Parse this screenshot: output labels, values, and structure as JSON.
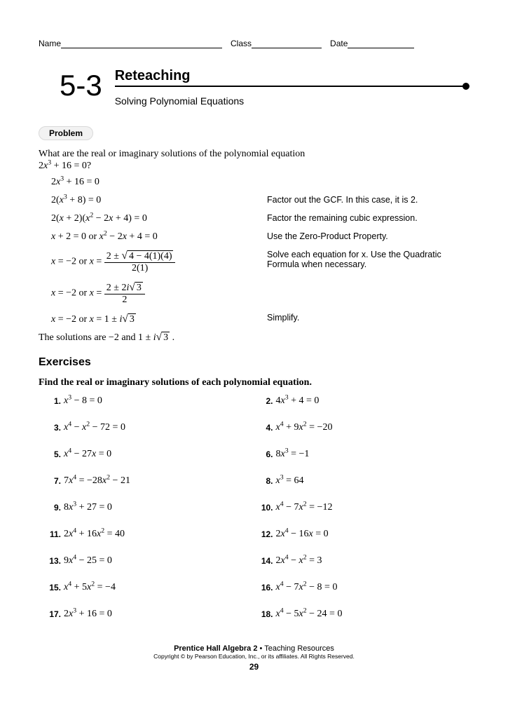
{
  "header": {
    "name_label": "Name",
    "class_label": "Class",
    "date_label": "Date"
  },
  "section": {
    "number": "5-3",
    "title": "Reteaching",
    "subtitle": "Solving Polynomial Equations"
  },
  "problem_label": "Problem",
  "problem": {
    "question_line1": "What are the real or imaginary solutions of the polynomial equation",
    "question_eq": "2x³ + 16 = 0?",
    "steps": [
      {
        "lhs": "2x³ + 16 = 0",
        "rhs": ""
      },
      {
        "lhs": "2(x³ + 8) = 0",
        "rhs": "Factor out the GCF. In this case, it is 2."
      },
      {
        "lhs": "2(x + 2)(x² − 2x + 4) = 0",
        "rhs": "Factor the remaining cubic expression."
      },
      {
        "lhs": "x + 2 = 0 or x² − 2x + 4 = 0",
        "rhs": "Use the Zero-Product Property."
      },
      {
        "lhs_html": true,
        "rhs": "Solve each equation for x. Use the Quadratic Formula when necessary."
      },
      {
        "lhs_html2": true,
        "rhs": ""
      },
      {
        "lhs": "x = −2 or x = 1 ± i√3",
        "rhs": "Simplify."
      }
    ],
    "conclusion_prefix": "The solutions are −2 and ",
    "conclusion_expr": "1 ± i√3",
    "conclusion_suffix": " ."
  },
  "exercises": {
    "heading": "Exercises",
    "instruction": "Find the real or imaginary solutions of each polynomial equation.",
    "items": [
      {
        "n": "1.",
        "eq": "x³ − 8 = 0"
      },
      {
        "n": "2.",
        "eq": "4x³ + 4 = 0"
      },
      {
        "n": "3.",
        "eq": "x⁴ − x² − 72 = 0"
      },
      {
        "n": "4.",
        "eq": "x⁴ + 9x² = −20"
      },
      {
        "n": "5.",
        "eq": "x⁴ − 27x = 0"
      },
      {
        "n": "6.",
        "eq": "8x³ = −1"
      },
      {
        "n": "7.",
        "eq": "7x⁴ = −28x² − 21"
      },
      {
        "n": "8.",
        "eq": "x³ = 64"
      },
      {
        "n": "9.",
        "eq": "8x³ + 27 = 0"
      },
      {
        "n": "10.",
        "eq": "x⁴ − 7x² = −12"
      },
      {
        "n": "11.",
        "eq": "2x⁴ + 16x² = 40"
      },
      {
        "n": "12.",
        "eq": "2x⁴ − 16x = 0"
      },
      {
        "n": "13.",
        "eq": "9x⁴ − 25 = 0"
      },
      {
        "n": "14.",
        "eq": "2x⁴ − x² = 3"
      },
      {
        "n": "15.",
        "eq": "x⁴ + 5x² = −4"
      },
      {
        "n": "16.",
        "eq": "x⁴ − 7x² − 8 = 0"
      },
      {
        "n": "17.",
        "eq": "2x³ + 16 = 0"
      },
      {
        "n": "18.",
        "eq": "x⁴ − 5x² − 24 = 0"
      }
    ]
  },
  "footer": {
    "book": "Prentice Hall Algebra 2",
    "dot": " • ",
    "res": "Teaching Resources",
    "copyright": "Copyright © by Pearson Education, Inc., or its affiliates. All Rights Reserved.",
    "page": "29"
  },
  "colors": {
    "text": "#000000",
    "badge_bg": "#f2f2f2",
    "badge_border": "#d9d9d9",
    "page_bg": "#ffffff"
  },
  "typography": {
    "body_family": "Times New Roman",
    "ui_family": "Arial",
    "body_size_pt": 10.5,
    "title_size_pt": 15,
    "secnum_size_pt": 32
  }
}
